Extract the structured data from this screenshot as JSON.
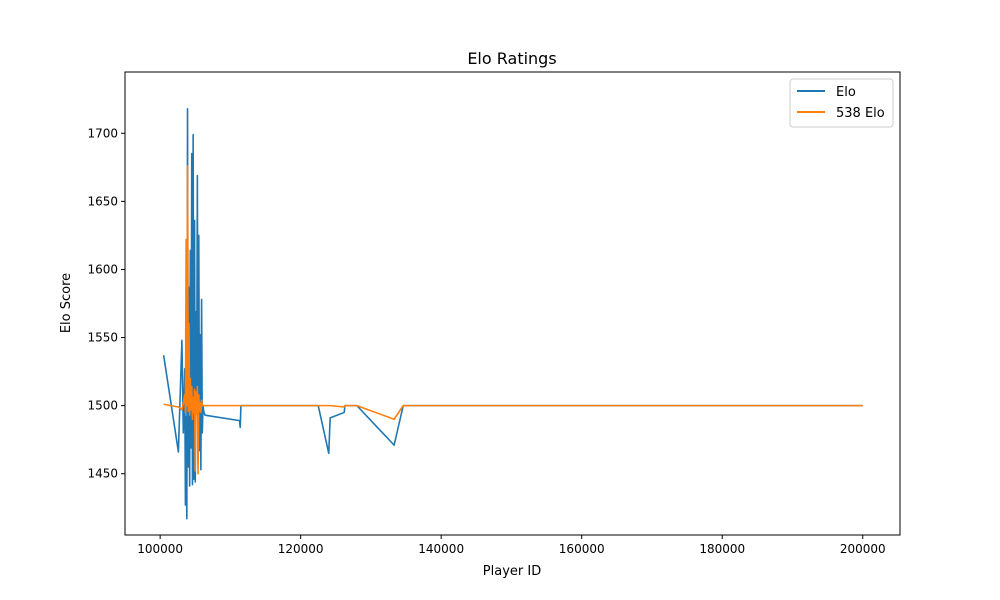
{
  "chart_data": {
    "type": "line",
    "title": "Elo Ratings",
    "xlabel": "Player ID",
    "ylabel": "Elo Score",
    "xlim": [
      95000,
      205300
    ],
    "ylim": [
      1405,
      1745
    ],
    "xticks": [
      100000,
      120000,
      140000,
      160000,
      180000,
      200000
    ],
    "xtick_labels": [
      "100000",
      "120000",
      "140000",
      "160000",
      "180000",
      "200000"
    ],
    "yticks": [
      1450,
      1500,
      1550,
      1600,
      1650,
      1700
    ],
    "ytick_labels": [
      "1450",
      "1500",
      "1550",
      "1600",
      "1650",
      "1700"
    ],
    "grid": false,
    "legend": {
      "placement": "top-right",
      "entries": [
        "Elo",
        "538 Elo"
      ]
    },
    "series": [
      {
        "name": "Elo",
        "color": "#1f77b4",
        "x": [
          100500,
          102600,
          103100,
          103300,
          103500,
          103600,
          103700,
          103800,
          103900,
          104000,
          104100,
          104200,
          104300,
          104400,
          104500,
          104600,
          104700,
          104800,
          104900,
          105000,
          105100,
          105200,
          105300,
          105400,
          105500,
          105600,
          105700,
          105800,
          105900,
          106000,
          106100,
          106200,
          106300,
          106400,
          111300,
          111400,
          111500,
          111600,
          122500,
          124000,
          124200,
          126200,
          126300,
          128000,
          133300,
          134600,
          200000
        ],
        "y": [
          1537,
          1466,
          1548,
          1480,
          1527,
          1427,
          1492,
          1417,
          1718,
          1455,
          1587,
          1441,
          1614,
          1469,
          1685,
          1442,
          1699,
          1446,
          1636,
          1444,
          1569,
          1498,
          1669,
          1458,
          1625,
          1467,
          1552,
          1453,
          1578,
          1480,
          1500,
          1496,
          1494,
          1493,
          1489,
          1484,
          1500,
          1500,
          1500,
          1465,
          1491,
          1495,
          1500,
          1500,
          1471,
          1500,
          1500
        ]
      },
      {
        "name": "538 Elo",
        "color": "#ff7f0e",
        "x": [
          100500,
          102600,
          103100,
          103300,
          103500,
          103600,
          103700,
          103800,
          103900,
          104000,
          104100,
          104200,
          104300,
          104400,
          104500,
          104600,
          104700,
          104800,
          104900,
          105000,
          105100,
          105200,
          105300,
          105400,
          105500,
          105600,
          105700,
          105800,
          105900,
          106000,
          106100,
          106200,
          106300,
          106400,
          111300,
          111400,
          111500,
          111600,
          122500,
          124000,
          124200,
          126200,
          126300,
          128000,
          133300,
          134600,
          200000
        ],
        "y": [
          1501,
          1499,
          1497,
          1502,
          1508,
          1495,
          1622,
          1500,
          1676,
          1496,
          1560,
          1493,
          1520,
          1497,
          1514,
          1490,
          1506,
          1495,
          1512,
          1452,
          1510,
          1494,
          1514,
          1450,
          1508,
          1496,
          1502,
          1495,
          1504,
          1500,
          1500,
          1500,
          1500,
          1500,
          1500,
          1500,
          1500,
          1500,
          1500,
          1500,
          1500,
          1499,
          1500,
          1500,
          1490,
          1500,
          1500
        ]
      }
    ]
  }
}
